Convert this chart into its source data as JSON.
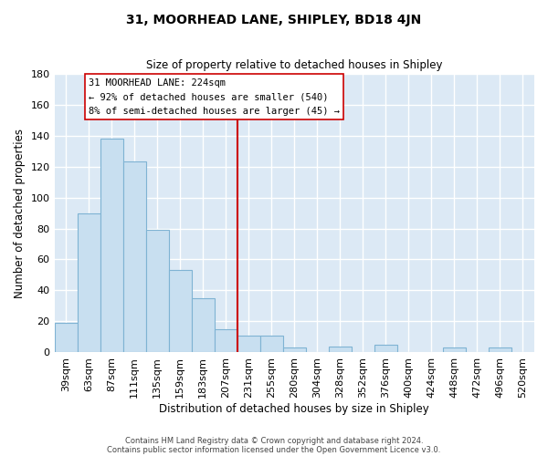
{
  "title": "31, MOORHEAD LANE, SHIPLEY, BD18 4JN",
  "subtitle": "Size of property relative to detached houses in Shipley",
  "xlabel": "Distribution of detached houses by size in Shipley",
  "ylabel": "Number of detached properties",
  "bar_labels": [
    "39sqm",
    "63sqm",
    "87sqm",
    "111sqm",
    "135sqm",
    "159sqm",
    "183sqm",
    "207sqm",
    "231sqm",
    "255sqm",
    "280sqm",
    "304sqm",
    "328sqm",
    "352sqm",
    "376sqm",
    "400sqm",
    "424sqm",
    "448sqm",
    "472sqm",
    "496sqm",
    "520sqm"
  ],
  "bar_values": [
    19,
    90,
    138,
    123,
    79,
    53,
    35,
    15,
    11,
    11,
    3,
    0,
    4,
    0,
    5,
    0,
    0,
    3,
    0,
    3,
    0
  ],
  "bar_color": "#c8dff0",
  "bar_edge_color": "#7fb3d3",
  "vline_color": "#cc0000",
  "annotation_title": "31 MOORHEAD LANE: 224sqm",
  "annotation_line1": "← 92% of detached houses are smaller (540)",
  "annotation_line2": "8% of semi-detached houses are larger (45) →",
  "annotation_box_color": "#ffffff",
  "annotation_box_edge": "#cc0000",
  "ylim": [
    0,
    180
  ],
  "footnote1": "Contains HM Land Registry data © Crown copyright and database right 2024.",
  "footnote2": "Contains public sector information licensed under the Open Government Licence v3.0.",
  "fig_background": "#ffffff",
  "plot_background": "#dce9f5"
}
